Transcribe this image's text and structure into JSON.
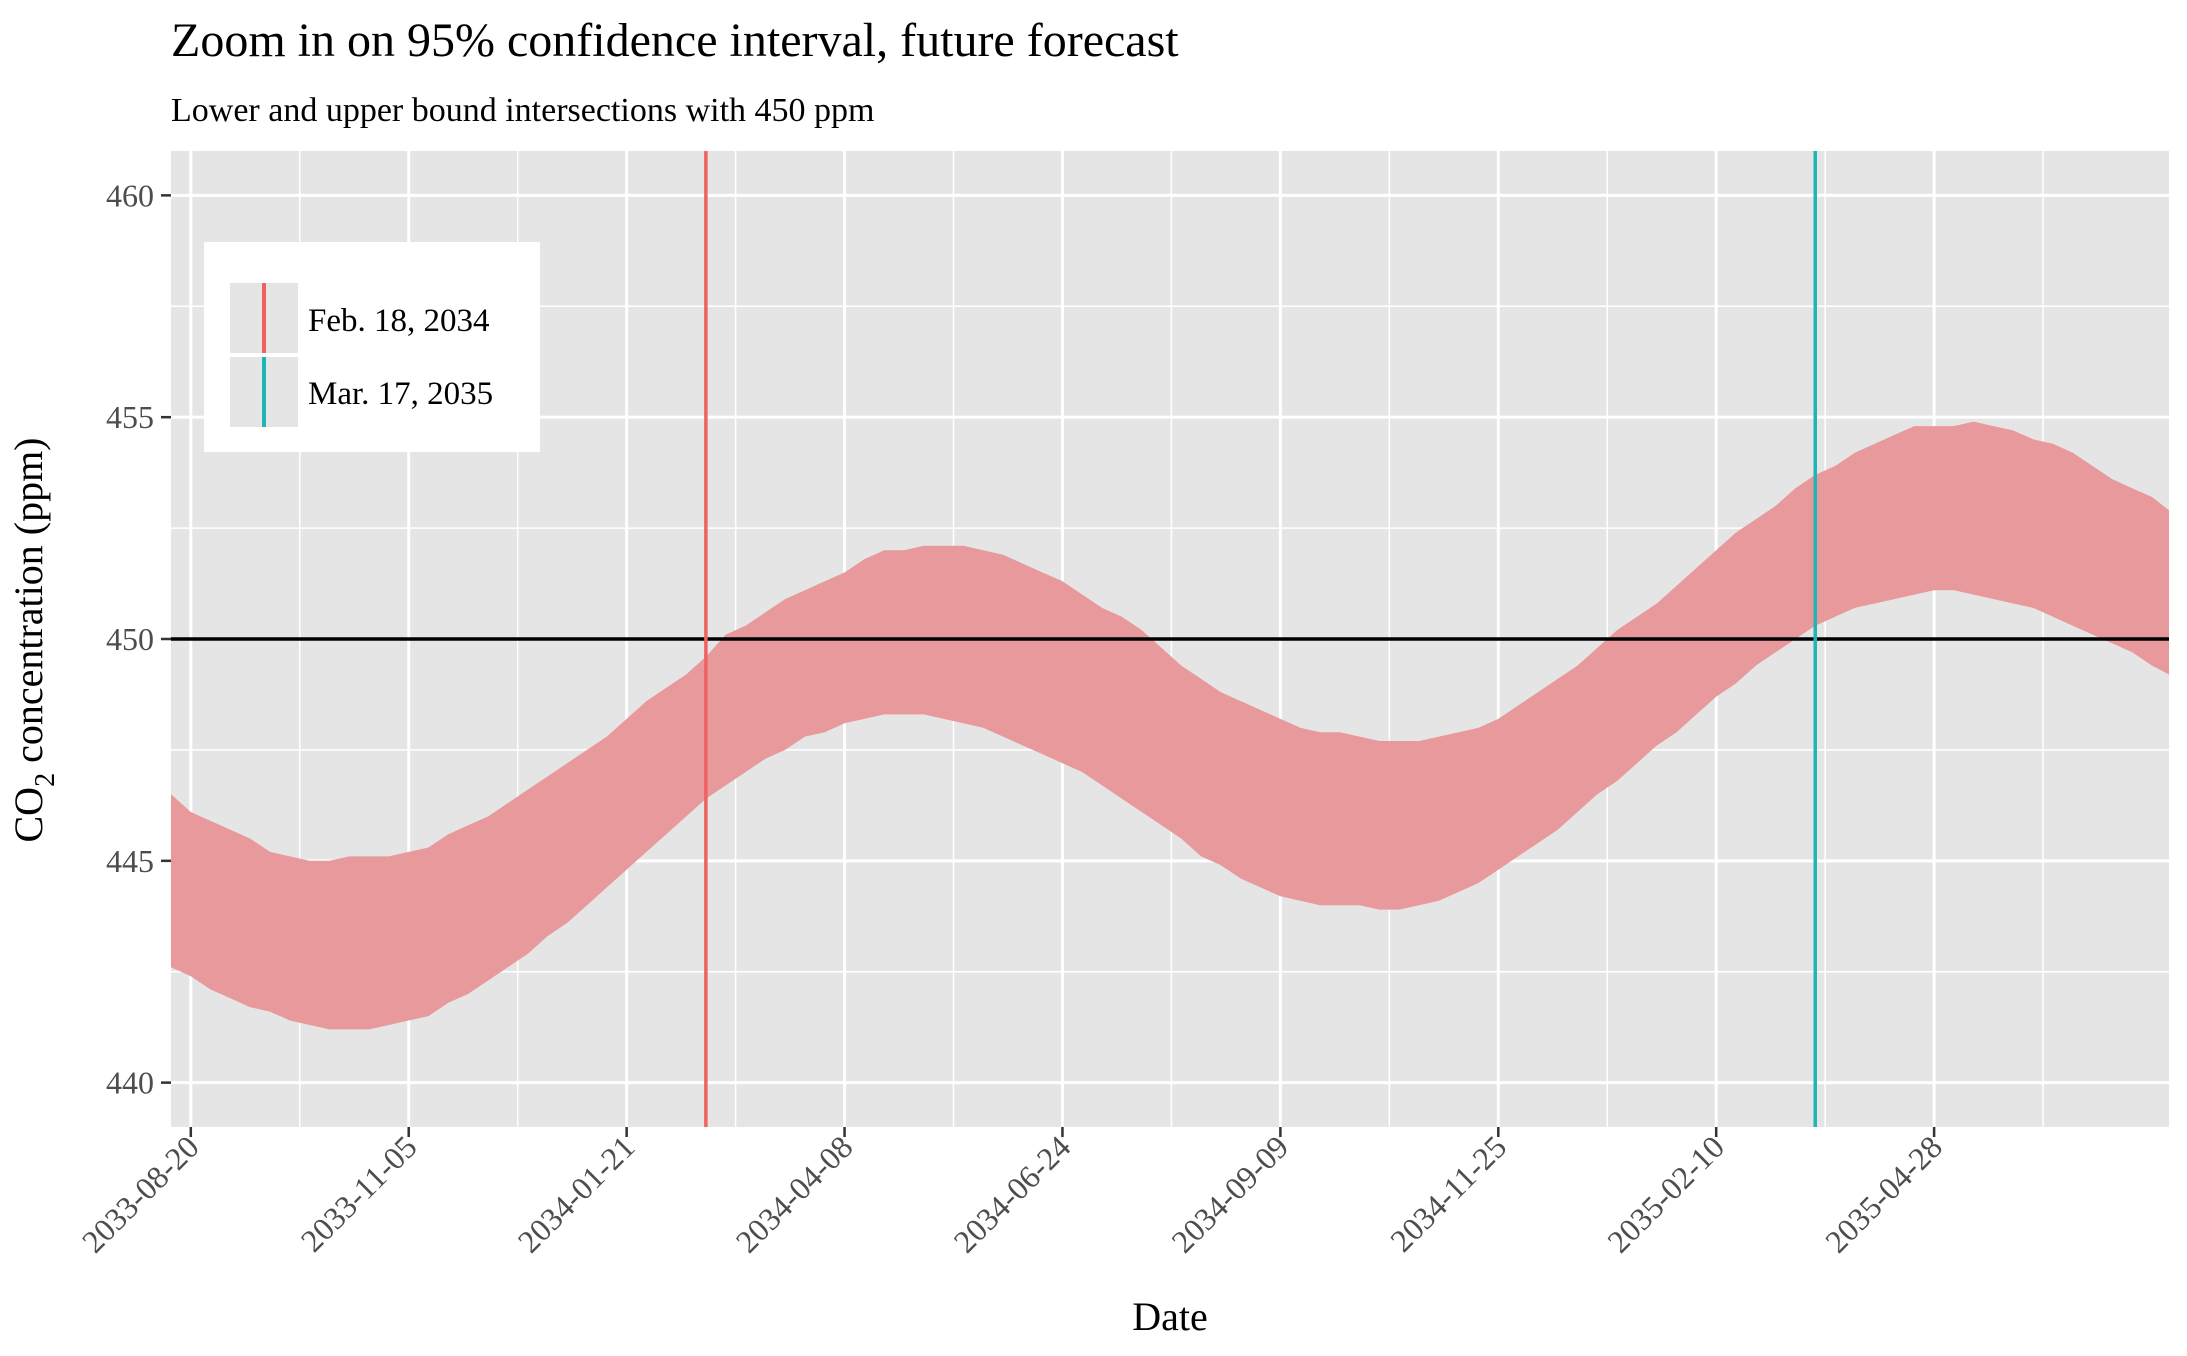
{
  "chart_data": {
    "type": "area",
    "title": "Zoom in on 95% confidence interval, future forecast",
    "subtitle": "Lower and upper bound intersections with 450 ppm",
    "xlabel": "Date",
    "ylabel_main": "CO",
    "ylabel_sub": "2",
    "ylabel_rest": " concentration (ppm)",
    "x_range": [
      "2033-08-13",
      "2035-07-20"
    ],
    "ylim": [
      439,
      461
    ],
    "x_ticks": [
      "2033-08-20",
      "2033-11-05",
      "2034-01-21",
      "2034-04-08",
      "2034-06-24",
      "2034-09-09",
      "2034-11-25",
      "2035-02-10",
      "2035-04-28"
    ],
    "y_ticks": [
      440,
      445,
      450,
      455,
      460
    ],
    "grid": true,
    "ribbon": {
      "color": "#e8999c",
      "x": [
        "2033-08-13",
        "2033-08-20",
        "2033-08-27",
        "2033-09-03",
        "2033-09-10",
        "2033-09-17",
        "2033-09-24",
        "2033-10-01",
        "2033-10-08",
        "2033-10-15",
        "2033-10-22",
        "2033-10-29",
        "2033-11-05",
        "2033-11-12",
        "2033-11-19",
        "2033-11-26",
        "2033-12-03",
        "2033-12-10",
        "2033-12-17",
        "2033-12-24",
        "2033-12-31",
        "2034-01-07",
        "2034-01-14",
        "2034-01-21",
        "2034-01-28",
        "2034-02-04",
        "2034-02-11",
        "2034-02-18",
        "2034-02-25",
        "2034-03-04",
        "2034-03-11",
        "2034-03-18",
        "2034-03-25",
        "2034-04-01",
        "2034-04-08",
        "2034-04-15",
        "2034-04-22",
        "2034-04-29",
        "2034-05-06",
        "2034-05-13",
        "2034-05-20",
        "2034-05-27",
        "2034-06-03",
        "2034-06-10",
        "2034-06-17",
        "2034-06-24",
        "2034-07-01",
        "2034-07-08",
        "2034-07-15",
        "2034-07-22",
        "2034-07-29",
        "2034-08-05",
        "2034-08-12",
        "2034-08-19",
        "2034-08-26",
        "2034-09-02",
        "2034-09-09",
        "2034-09-16",
        "2034-09-23",
        "2034-09-30",
        "2034-10-07",
        "2034-10-14",
        "2034-10-21",
        "2034-10-28",
        "2034-11-04",
        "2034-11-11",
        "2034-11-18",
        "2034-11-25",
        "2034-12-02",
        "2034-12-09",
        "2034-12-16",
        "2034-12-23",
        "2034-12-30",
        "2035-01-06",
        "2035-01-13",
        "2035-01-20",
        "2035-01-27",
        "2035-02-03",
        "2035-02-10",
        "2035-02-17",
        "2035-02-24",
        "2035-03-03",
        "2035-03-10",
        "2035-03-17",
        "2035-03-24",
        "2035-03-31",
        "2035-04-07",
        "2035-04-14",
        "2035-04-21",
        "2035-04-28",
        "2035-05-05",
        "2035-05-12",
        "2035-05-19",
        "2035-05-26",
        "2035-06-02",
        "2035-06-09",
        "2035-06-16",
        "2035-06-23",
        "2035-06-30",
        "2035-07-07",
        "2035-07-14",
        "2035-07-20"
      ],
      "upper": [
        446.5,
        446.1,
        445.9,
        445.7,
        445.5,
        445.2,
        445.1,
        445.0,
        445.0,
        445.1,
        445.1,
        445.1,
        445.2,
        445.3,
        445.6,
        445.8,
        446.0,
        446.3,
        446.6,
        446.9,
        447.2,
        447.5,
        447.8,
        448.2,
        448.6,
        448.9,
        449.2,
        449.6,
        450.1,
        450.3,
        450.6,
        450.9,
        451.1,
        451.3,
        451.5,
        451.8,
        452.0,
        452.0,
        452.1,
        452.1,
        452.1,
        452.0,
        451.9,
        451.7,
        451.5,
        451.3,
        451.0,
        450.7,
        450.5,
        450.2,
        449.8,
        449.4,
        449.1,
        448.8,
        448.6,
        448.4,
        448.2,
        448.0,
        447.9,
        447.9,
        447.8,
        447.7,
        447.7,
        447.7,
        447.8,
        447.9,
        448.0,
        448.2,
        448.5,
        448.8,
        449.1,
        449.4,
        449.8,
        450.2,
        450.5,
        450.8,
        451.2,
        451.6,
        452.0,
        452.4,
        452.7,
        453.0,
        453.4,
        453.7,
        453.9,
        454.2,
        454.4,
        454.6,
        454.8,
        454.8,
        454.8,
        454.9,
        454.8,
        454.7,
        454.5,
        454.4,
        454.2,
        453.9,
        453.6,
        453.4,
        453.2,
        452.9
      ],
      "lower": [
        442.6,
        442.4,
        442.1,
        441.9,
        441.7,
        441.6,
        441.4,
        441.3,
        441.2,
        441.2,
        441.2,
        441.3,
        441.4,
        441.5,
        441.8,
        442.0,
        442.3,
        442.6,
        442.9,
        443.3,
        443.6,
        444.0,
        444.4,
        444.8,
        445.2,
        445.6,
        446.0,
        446.4,
        446.7,
        447.0,
        447.3,
        447.5,
        447.8,
        447.9,
        448.1,
        448.2,
        448.3,
        448.3,
        448.3,
        448.2,
        448.1,
        448.0,
        447.8,
        447.6,
        447.4,
        447.2,
        447.0,
        446.7,
        446.4,
        446.1,
        445.8,
        445.5,
        445.1,
        444.9,
        444.6,
        444.4,
        444.2,
        444.1,
        444.0,
        444.0,
        444.0,
        443.9,
        443.9,
        444.0,
        444.1,
        444.3,
        444.5,
        444.8,
        445.1,
        445.4,
        445.7,
        446.1,
        446.5,
        446.8,
        447.2,
        447.6,
        447.9,
        448.3,
        448.7,
        449.0,
        449.4,
        449.7,
        450.0,
        450.3,
        450.5,
        450.7,
        450.8,
        450.9,
        451.0,
        451.1,
        451.1,
        451.0,
        450.9,
        450.8,
        450.7,
        450.5,
        450.3,
        450.1,
        449.9,
        449.7,
        449.4,
        449.2
      ]
    },
    "hline": {
      "y": 450,
      "color": "#000000"
    },
    "vlines": [
      {
        "x": "2034-02-18",
        "label": "Feb. 18, 2034",
        "color": "#f0625f"
      },
      {
        "x": "2035-03-17",
        "label": "Mar. 17, 2035",
        "color": "#1fb5b5"
      }
    ],
    "legend_position": "top-left"
  }
}
